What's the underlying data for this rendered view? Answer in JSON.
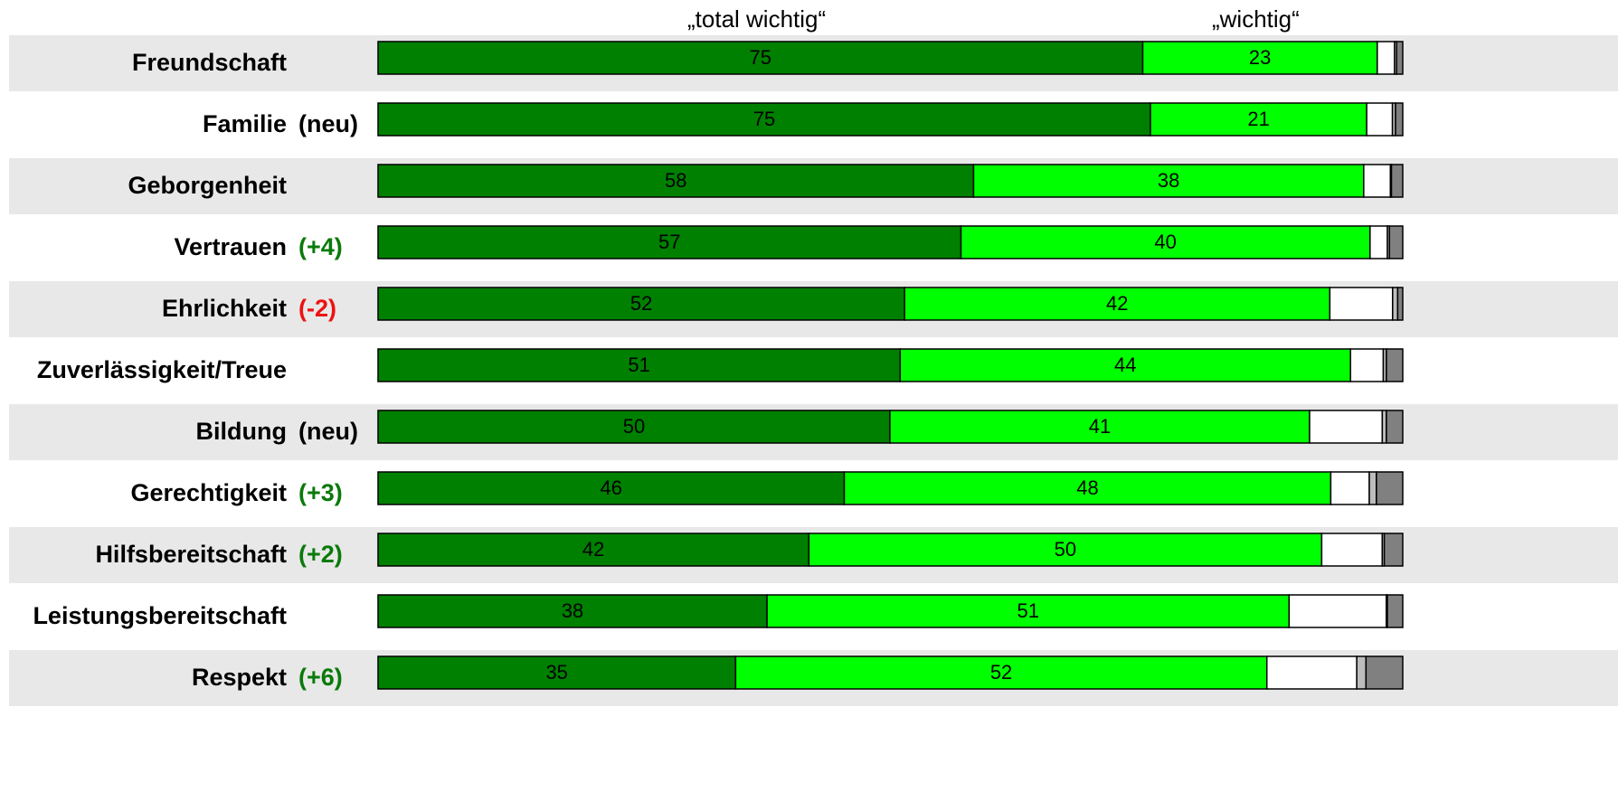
{
  "legend": {
    "series1": "„total wichtig“",
    "series2": "„wichtig“"
  },
  "colors": {
    "total_wichtig": "#008000",
    "wichtig": "#00ff00",
    "weniger_wichtig": "#ffffff",
    "unwichtig": "#bdbdbd",
    "keine_angabe": "#808080",
    "band": "#e8e8e8",
    "change_positive": "#0a7a0a",
    "change_negative": "#ee1111"
  },
  "chart_data": {
    "type": "bar",
    "orientation": "horizontal",
    "stacked": true,
    "xlim": [
      0,
      100
    ],
    "categories": [
      "Freundschaft",
      "Familie",
      "Geborgenheit",
      "Vertrauen",
      "Ehrlichkeit",
      "Zuverlässigkeit/Treue",
      "Bildung",
      "Gerechtigkeit",
      "Hilfsbereitschaft",
      "Leistungsbereitschaft",
      "Respekt"
    ],
    "row_notes": [
      "",
      "(neu)",
      "",
      "(+4)",
      "(-2)",
      "",
      "(neu)",
      "(+3)",
      "(+2)",
      "",
      "(+6)"
    ],
    "row_note_kind": [
      "none",
      "new",
      "none",
      "positive",
      "negative",
      "none",
      "new",
      "positive",
      "positive",
      "none",
      "positive"
    ],
    "series": [
      {
        "name": "„total wichtig“",
        "values": [
          75,
          75,
          58,
          57,
          52,
          51,
          50,
          46,
          42,
          38,
          35
        ]
      },
      {
        "name": "„wichtig“",
        "values": [
          23,
          21,
          38,
          40,
          42,
          44,
          41,
          48,
          50,
          51,
          52
        ]
      },
      {
        "values": [
          1.7,
          2.5,
          2.6,
          1.7,
          6.2,
          3.2,
          7.1,
          3.8,
          5.9,
          9.5,
          8.8
        ]
      },
      {
        "values": [
          0.2,
          0.3,
          0.1,
          0.2,
          0.5,
          0.3,
          0.4,
          0.7,
          0.2,
          0.1,
          0.9
        ]
      },
      {
        "values": [
          0.6,
          0.7,
          1.1,
          1.3,
          0.5,
          1.6,
          1.6,
          2.6,
          1.8,
          1.5,
          3.6
        ]
      }
    ]
  }
}
